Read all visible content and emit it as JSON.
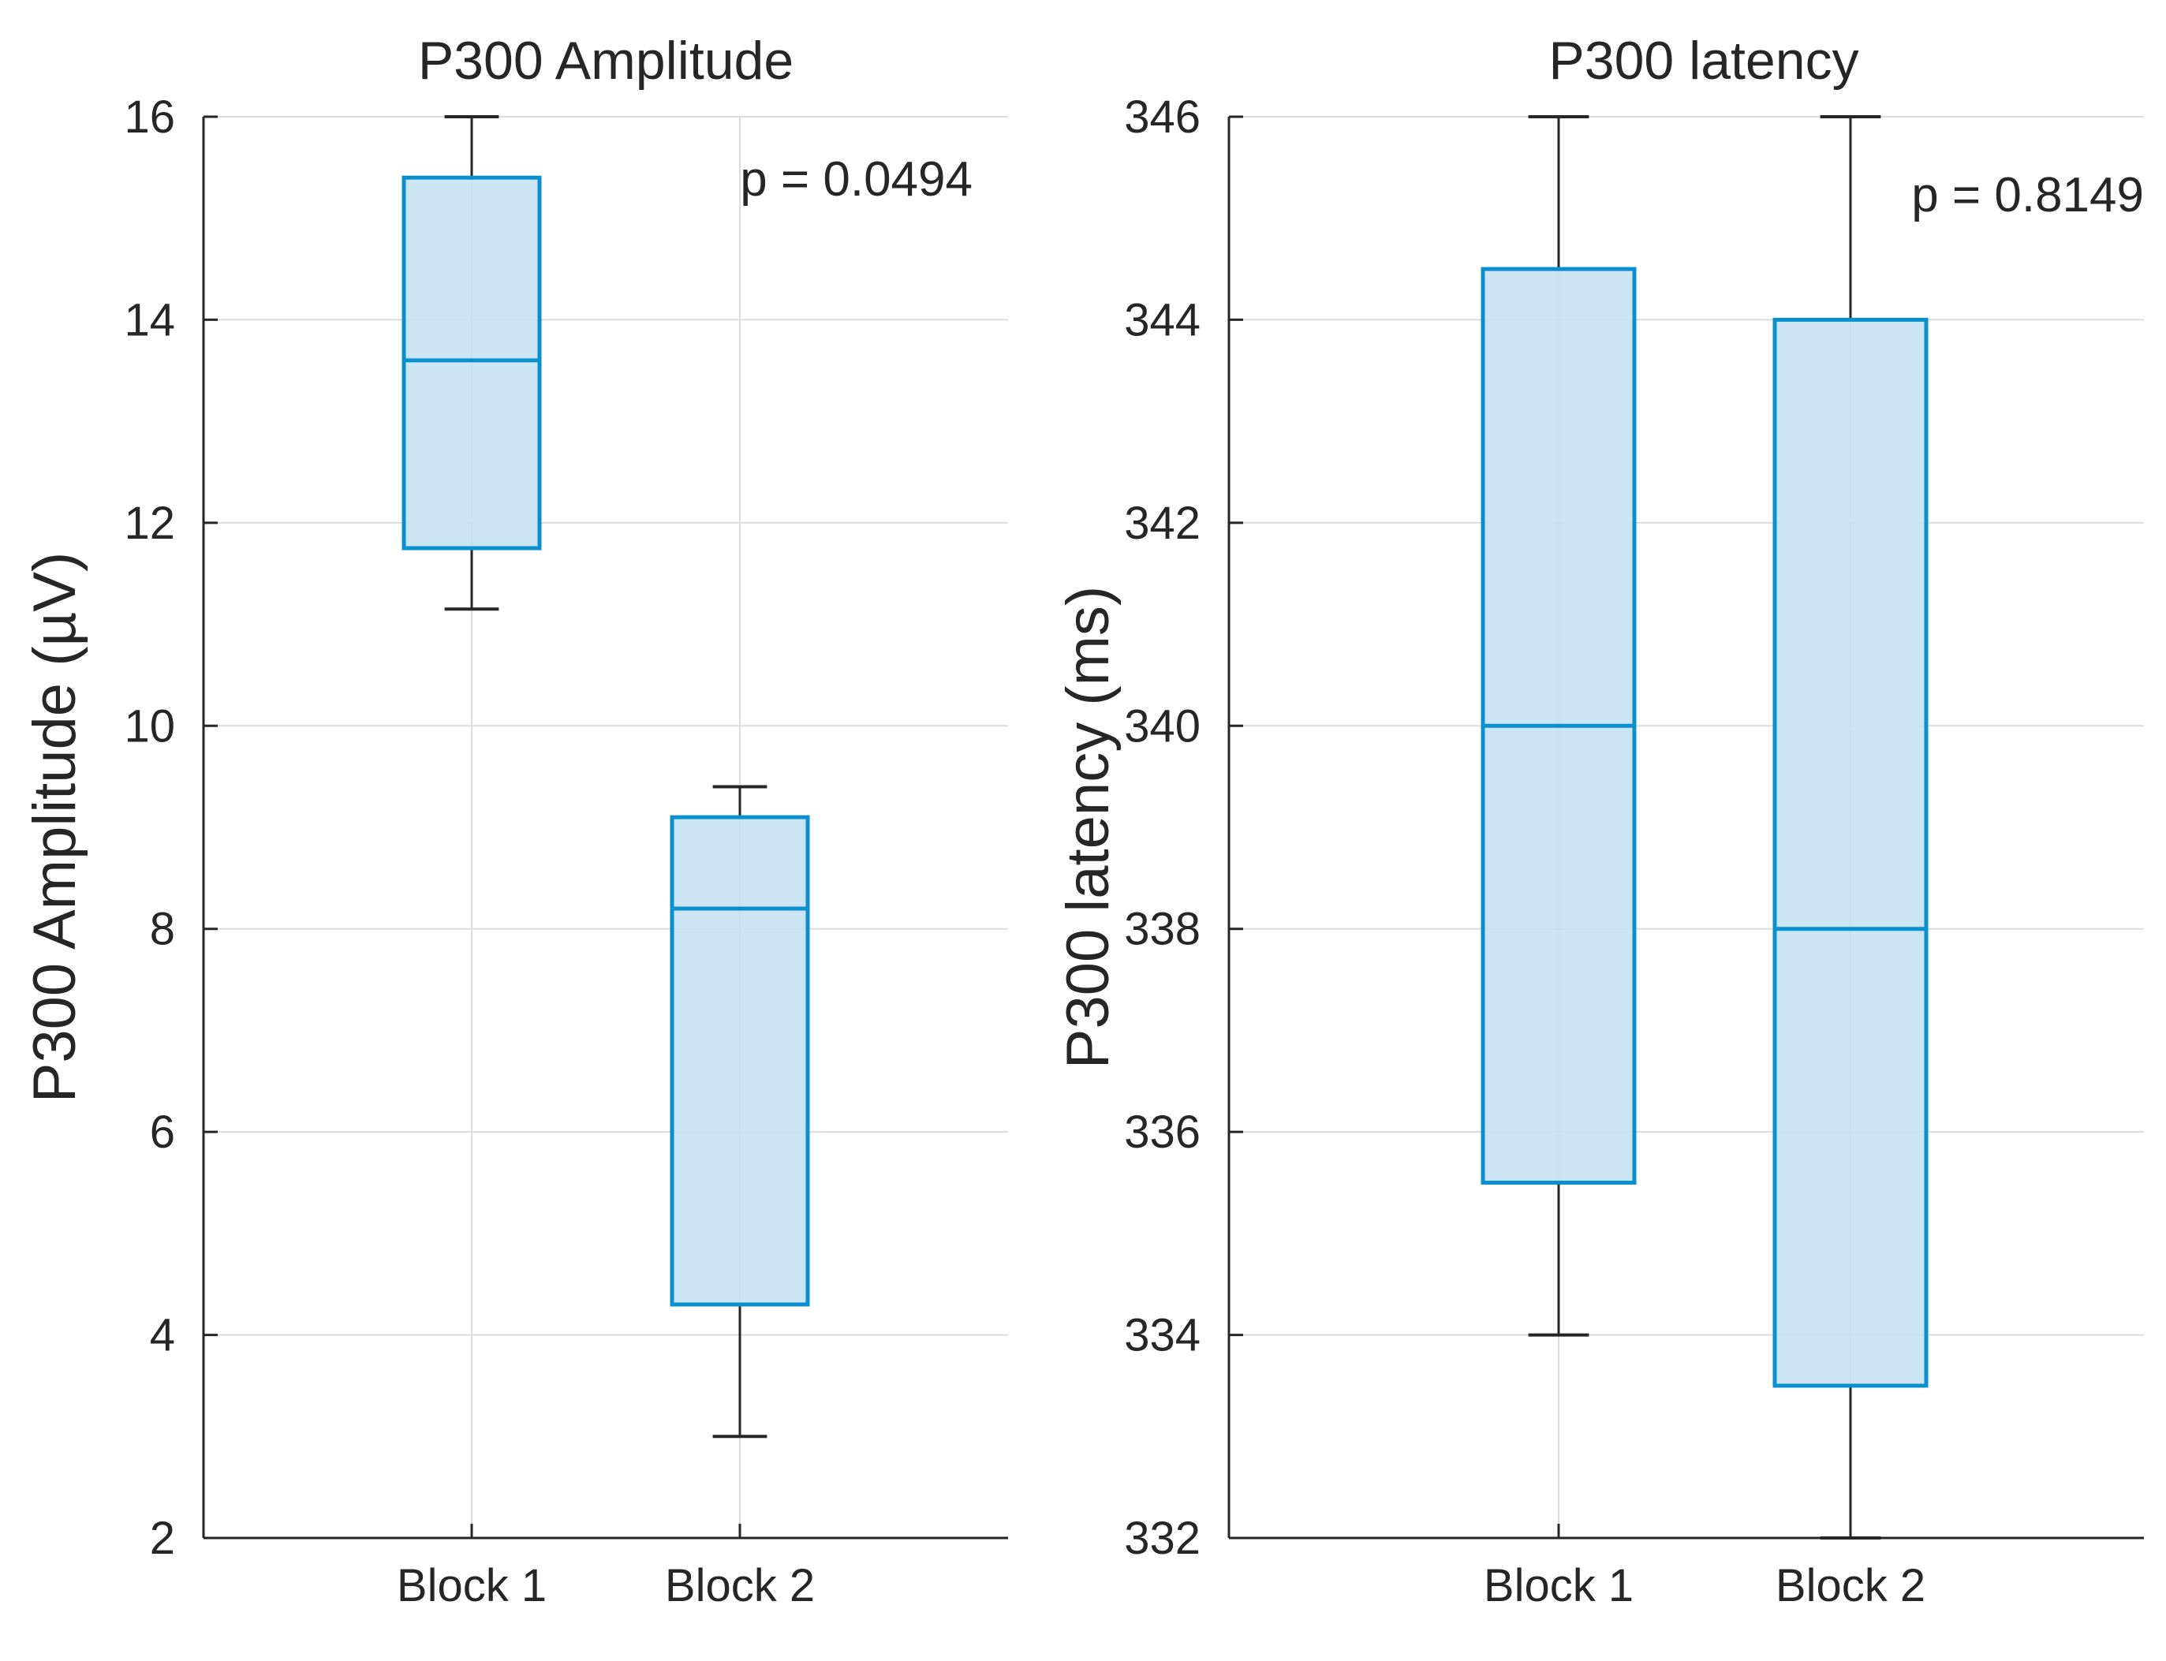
{
  "colors": {
    "box_edge": "#0a8fcf",
    "box_fill": "#c5e3f1",
    "whisker": "#262626",
    "grid": "#dcdcdc",
    "axis": "#262626"
  },
  "chart_data": [
    {
      "type": "box",
      "title": "P300 Amplitude",
      "xlabel": "",
      "ylabel": "P300 Amplitude (µV)",
      "ylim": [
        2,
        16
      ],
      "yticks": [
        "2",
        "4",
        "6",
        "8",
        "10",
        "12",
        "14",
        "16"
      ],
      "categories": [
        "Block 1",
        "Block 2"
      ],
      "boxes": [
        {
          "label": "Block 1",
          "min": 11.15,
          "q1": 11.75,
          "median": 13.6,
          "q3": 15.4,
          "max": 16.0
        },
        {
          "label": "Block 2",
          "min": 3.0,
          "q1": 4.3,
          "median": 8.2,
          "q3": 9.1,
          "max": 9.4
        }
      ],
      "annotation": "p = 0.0494",
      "grid": true
    },
    {
      "type": "box",
      "title": "P300 latency",
      "xlabel": "",
      "ylabel": "P300 latency (ms)",
      "ylim": [
        332,
        346
      ],
      "yticks": [
        "332",
        "334",
        "336",
        "338",
        "340",
        "342",
        "344",
        "346"
      ],
      "categories": [
        "Block 1",
        "Block 2"
      ],
      "boxes": [
        {
          "label": "Block 1",
          "min": 334.0,
          "q1": 335.5,
          "median": 340.0,
          "q3": 344.5,
          "max": 346.0
        },
        {
          "label": "Block 2",
          "min": 332.0,
          "q1": 333.5,
          "median": 338.0,
          "q3": 344.0,
          "max": 346.0
        }
      ],
      "annotation": "p = 0.8149",
      "grid": true
    }
  ]
}
